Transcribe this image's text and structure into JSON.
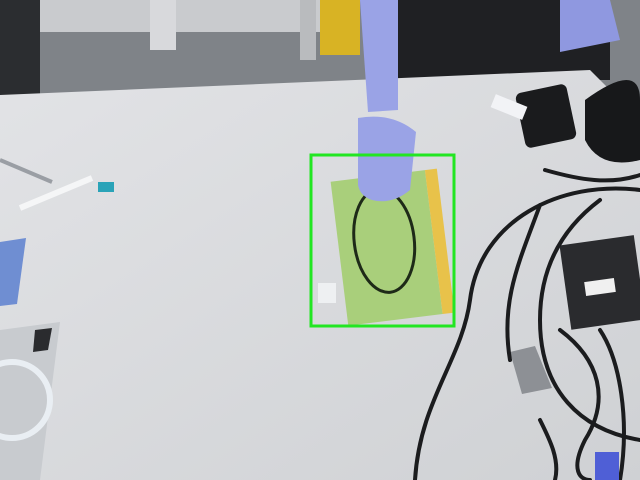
{
  "scene": {
    "description_label": "",
    "detection": {
      "label": "",
      "box_color": "#22e622"
    },
    "colors": {
      "floor": "#8e9196",
      "table": "#d9dadd",
      "book_cover": "#a9cf7b",
      "book_spine": "#e8c24a",
      "glove": "#9aa3e6",
      "cable": "#1b1c1e"
    }
  }
}
